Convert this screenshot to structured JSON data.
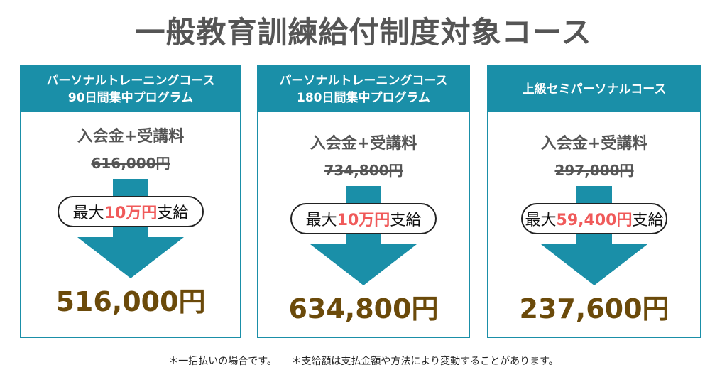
{
  "title": "一般教育訓練給付制度対象コース",
  "cards": [
    {
      "header": [
        "パーソナルトレーニングコース",
        "90日間集中プログラム"
      ],
      "label": "入会金+受講料",
      "original_price": "616,000円",
      "subsidy": {
        "prefix": "最大",
        "amount": "10万円",
        "suffix": "支給"
      },
      "final_price": "516,000円"
    },
    {
      "header": [
        "パーソナルトレーニングコース",
        "180日間集中プログラム"
      ],
      "label": "入会金+受講料",
      "original_price": "734,800円",
      "subsidy": {
        "prefix": "最大",
        "amount": "10万円",
        "suffix": "支給"
      },
      "final_price": "634,800円"
    },
    {
      "header": [
        "上級セミパーソナルコース"
      ],
      "label": "入会金+受講料",
      "original_price": "297,000円",
      "subsidy": {
        "prefix": "最大",
        "amount": "59,400円",
        "suffix": "支給"
      },
      "final_price": "237,600円"
    }
  ],
  "footnotes": [
    "＊一括払いの場合です。",
    "＊支給額は支払金額や方法により変動することがあります。"
  ]
}
